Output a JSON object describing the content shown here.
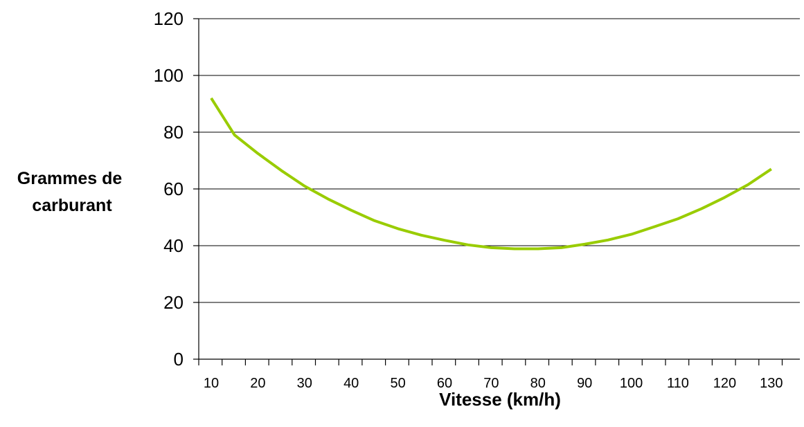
{
  "chart_data": {
    "type": "line",
    "title": "",
    "xlabel": "Vitesse (km/h)",
    "ylabel_lines": [
      "Grammes de",
      "carburant"
    ],
    "ylim": [
      0,
      120
    ],
    "y_ticks": [
      0,
      20,
      40,
      60,
      80,
      100,
      120
    ],
    "x_ticks": [
      10,
      20,
      30,
      40,
      50,
      60,
      70,
      80,
      90,
      100,
      110,
      120,
      130
    ],
    "grid": true,
    "legend": "none",
    "series": [
      {
        "color": "#99cc00",
        "x": [
          10,
          15,
          20,
          25,
          30,
          35,
          40,
          45,
          50,
          55,
          60,
          65,
          70,
          75,
          80,
          85,
          90,
          95,
          100,
          105,
          110,
          115,
          120,
          125,
          130
        ],
        "y": [
          92,
          79,
          72.5,
          66.5,
          61,
          56.5,
          52.5,
          48.8,
          46,
          43.7,
          41.9,
          40.3,
          39.3,
          38.9,
          38.9,
          39.3,
          40.5,
          42,
          44,
          46.7,
          49.5,
          53,
          57,
          61.5,
          67
        ]
      }
    ]
  }
}
